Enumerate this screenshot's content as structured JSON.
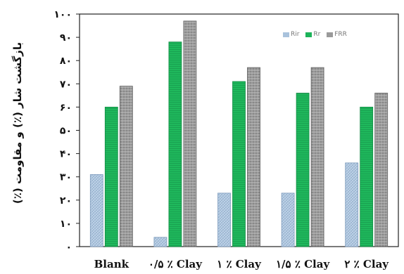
{
  "chart_data": {
    "type": "bar",
    "ylabel": "بازگشت شار (٪) و مقاومت (٪)",
    "categories": [
      "Blank",
      "۰/۵ ٪ Clay",
      "۱ ٪ Clay",
      "۱/۵ ٪ Clay",
      "۲ ٪ Clay"
    ],
    "y_ticks": [
      "۰",
      "۱۰",
      "۲۰",
      "۳۰",
      "۴۰",
      "۵۰",
      "۶۰",
      "۷۰",
      "۸۰",
      "۹۰",
      "۱۰۰"
    ],
    "ylim": [
      0,
      100
    ],
    "grid": false,
    "legend_position": "top-right",
    "series": [
      {
        "name": "Rir",
        "color": "#a9c2dc",
        "values": [
          31,
          4,
          23,
          23,
          36
        ]
      },
      {
        "name": "Rr",
        "color": "#1db35a",
        "values": [
          60,
          88,
          71,
          66,
          60
        ]
      },
      {
        "name": "FRR",
        "color": "#9a9a9a",
        "values": [
          69,
          97,
          77,
          77,
          66
        ]
      }
    ]
  }
}
